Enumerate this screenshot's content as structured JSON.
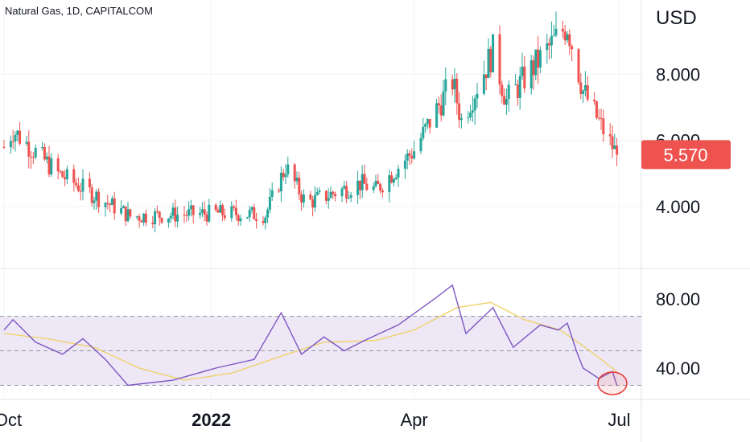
{
  "header": {
    "title": "Natural Gas, 1D, CAPITALCOM"
  },
  "colors": {
    "up": "#26a69a",
    "down": "#ef5350",
    "rsi_line": "#7e57c2",
    "rsi_ma": "#f0d060",
    "rsi_band": "#ede7f6",
    "price_badge": "#ef5350",
    "highlight_circle": "#e53935"
  },
  "chart_data": [
    {
      "type": "candlestick",
      "y_axis": {
        "unit_label": "USD",
        "ticks": [
          "8.000",
          "6.000",
          "4.000"
        ],
        "tick_values": [
          8.0,
          6.0,
          4.0
        ]
      },
      "ylim": [
        2.15,
        10.25
      ],
      "last_price": "5.570",
      "grid": true,
      "key_points": [
        {
          "date": "2021-10-01",
          "price": 5.8
        },
        {
          "date": "2021-10-05",
          "price": 6.3
        },
        {
          "date": "2021-10-25",
          "price": 5.0
        },
        {
          "date": "2021-11-26",
          "price": 3.7
        },
        {
          "date": "2022-01-04",
          "price": 3.8
        },
        {
          "date": "2022-01-25",
          "price": 3.75
        },
        {
          "date": "2022-02-03",
          "price": 5.2
        },
        {
          "date": "2022-02-12",
          "price": 4.1
        },
        {
          "date": "2022-03-08",
          "price": 4.7
        },
        {
          "date": "2022-03-15",
          "price": 4.5
        },
        {
          "date": "2022-04-01",
          "price": 5.7
        },
        {
          "date": "2022-04-18",
          "price": 7.8
        },
        {
          "date": "2022-04-22",
          "price": 6.6
        },
        {
          "date": "2022-05-06",
          "price": 8.7
        },
        {
          "date": "2022-05-12",
          "price": 7.2
        },
        {
          "date": "2022-06-01",
          "price": 8.9
        },
        {
          "date": "2022-06-08",
          "price": 9.5
        },
        {
          "date": "2022-06-15",
          "price": 7.5
        },
        {
          "date": "2022-06-24",
          "price": 6.3
        },
        {
          "date": "2022-06-30",
          "price": 5.57
        }
      ]
    },
    {
      "type": "line",
      "y_axis": {
        "ticks": [
          "80.00",
          "40.00"
        ],
        "tick_values": [
          80,
          40
        ]
      },
      "ylim": [
        20,
        100
      ],
      "band": [
        30,
        70
      ],
      "midline": 50,
      "highlight_date": "2022-06-28",
      "series_line": [
        {
          "date": "2021-10-01",
          "value": 62
        },
        {
          "date": "2021-10-05",
          "value": 68
        },
        {
          "date": "2021-10-15",
          "value": 55
        },
        {
          "date": "2021-10-27",
          "value": 48
        },
        {
          "date": "2021-11-05",
          "value": 57
        },
        {
          "date": "2021-11-15",
          "value": 45
        },
        {
          "date": "2021-11-25",
          "value": 30
        },
        {
          "date": "2021-12-15",
          "value": 33
        },
        {
          "date": "2022-01-03",
          "value": 40
        },
        {
          "date": "2022-01-20",
          "value": 45
        },
        {
          "date": "2022-02-01",
          "value": 72
        },
        {
          "date": "2022-02-10",
          "value": 48
        },
        {
          "date": "2022-02-20",
          "value": 58
        },
        {
          "date": "2022-03-01",
          "value": 50
        },
        {
          "date": "2022-03-10",
          "value": 56
        },
        {
          "date": "2022-03-25",
          "value": 65
        },
        {
          "date": "2022-04-10",
          "value": 80
        },
        {
          "date": "2022-04-18",
          "value": 88
        },
        {
          "date": "2022-04-24",
          "value": 60
        },
        {
          "date": "2022-05-06",
          "value": 75
        },
        {
          "date": "2022-05-15",
          "value": 52
        },
        {
          "date": "2022-05-27",
          "value": 65
        },
        {
          "date": "2022-06-04",
          "value": 62
        },
        {
          "date": "2022-06-08",
          "value": 66
        },
        {
          "date": "2022-06-12",
          "value": 50
        },
        {
          "date": "2022-06-15",
          "value": 40
        },
        {
          "date": "2022-06-22",
          "value": 34
        },
        {
          "date": "2022-06-28",
          "value": 38
        },
        {
          "date": "2022-06-30",
          "value": 30
        }
      ],
      "series_ma": [
        {
          "date": "2021-10-01",
          "value": 60
        },
        {
          "date": "2021-10-20",
          "value": 57
        },
        {
          "date": "2021-11-10",
          "value": 52
        },
        {
          "date": "2021-11-30",
          "value": 40
        },
        {
          "date": "2021-12-20",
          "value": 33
        },
        {
          "date": "2022-01-10",
          "value": 37
        },
        {
          "date": "2022-01-30",
          "value": 46
        },
        {
          "date": "2022-02-20",
          "value": 55
        },
        {
          "date": "2022-03-15",
          "value": 56
        },
        {
          "date": "2022-04-01",
          "value": 62
        },
        {
          "date": "2022-04-20",
          "value": 75
        },
        {
          "date": "2022-05-05",
          "value": 78
        },
        {
          "date": "2022-05-20",
          "value": 68
        },
        {
          "date": "2022-06-05",
          "value": 62
        },
        {
          "date": "2022-06-18",
          "value": 50
        },
        {
          "date": "2022-06-30",
          "value": 38
        }
      ]
    }
  ],
  "x_axis": {
    "ticks": [
      {
        "label": "Oct",
        "date": "2021-10-01",
        "bold": false
      },
      {
        "label": "2022",
        "date": "2022-01-01",
        "bold": true
      },
      {
        "label": "Apr",
        "date": "2022-04-01",
        "bold": false
      },
      {
        "label": "Jul",
        "date": "2022-07-01",
        "bold": false
      }
    ]
  }
}
